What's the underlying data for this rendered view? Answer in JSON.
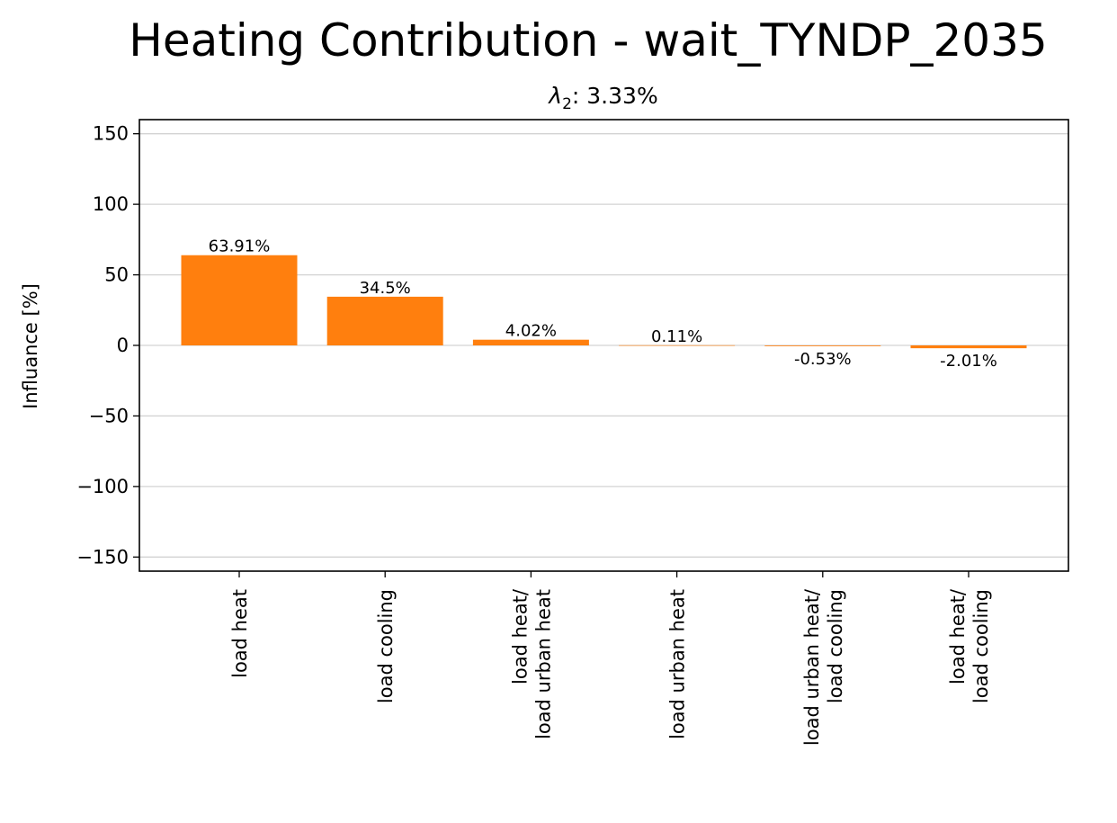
{
  "chart_data": {
    "type": "bar",
    "title": "Heating Contribution - wait_TYNDP_2035",
    "subtitle": {
      "symbol": "λ",
      "subscript": "2",
      "text": ": 3.33%"
    },
    "xlabel": "",
    "ylabel": "Influance [%]",
    "ylim": [
      -160,
      160
    ],
    "yticks": [
      150,
      100,
      50,
      0,
      -50,
      -100,
      -150
    ],
    "ytick_labels": [
      "150",
      "100",
      "50",
      "0",
      "−50",
      "−100",
      "−150"
    ],
    "grid": "horizontal",
    "bar_color": "#ff7f0e",
    "categories": [
      [
        "load heat"
      ],
      [
        "load cooling"
      ],
      [
        "load heat/",
        "load urban heat"
      ],
      [
        "load urban heat"
      ],
      [
        "load urban heat/",
        "load cooling"
      ],
      [
        "load heat/",
        "load cooling"
      ]
    ],
    "values": [
      63.91,
      34.5,
      4.02,
      0.11,
      -0.53,
      -2.01
    ],
    "value_labels": [
      "63.91%",
      "34.5%",
      "4.02%",
      "0.11%",
      "-0.53%",
      "-2.01%"
    ]
  }
}
